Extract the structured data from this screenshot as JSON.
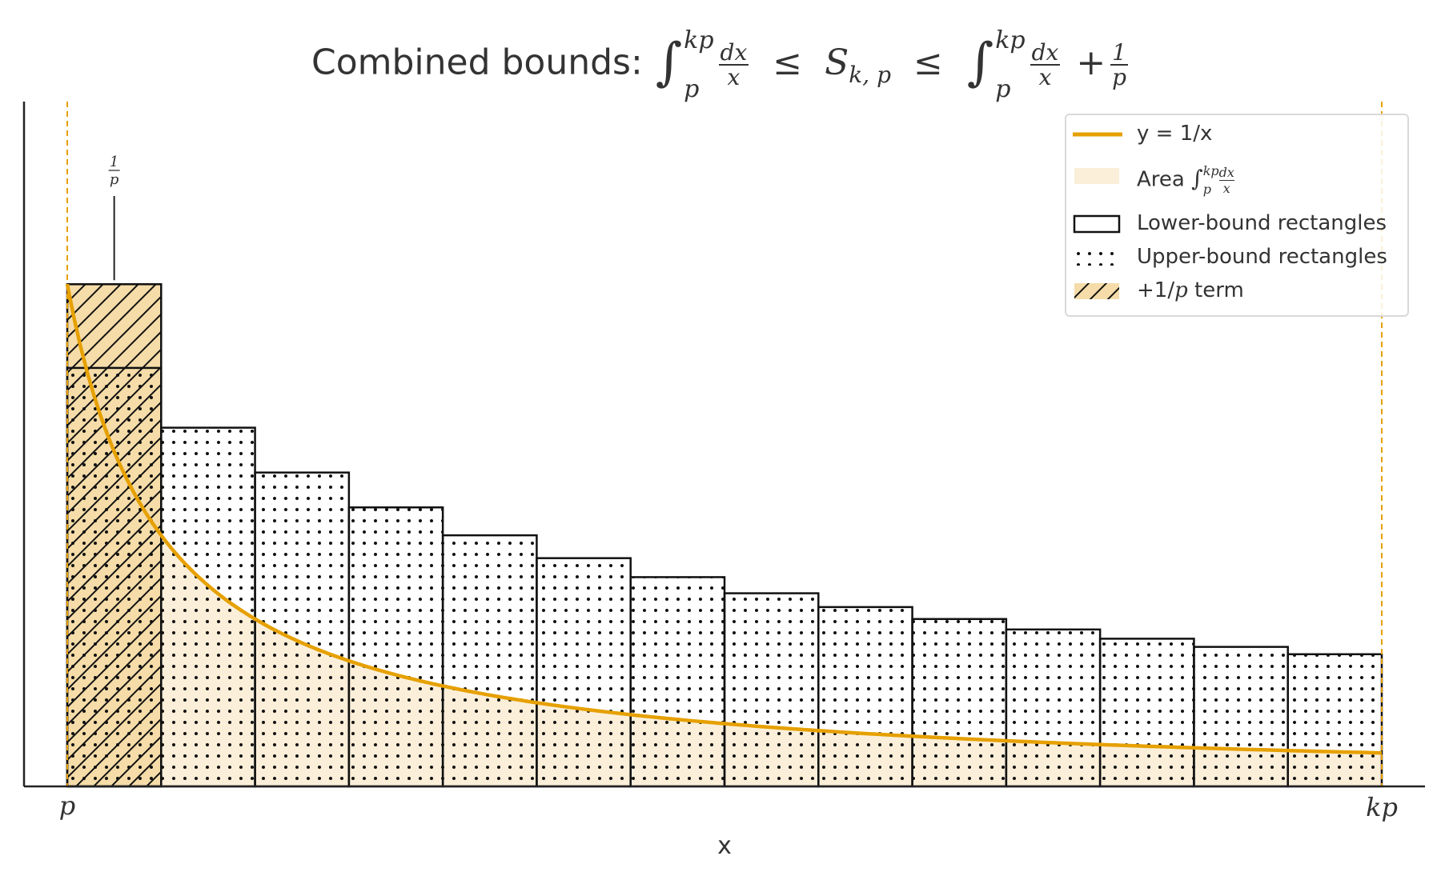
{
  "title": {
    "prefix": "Combined bounds:",
    "int_lower": "p",
    "int_upper": "kp",
    "frac_num": "dx",
    "frac_den": "x",
    "rel1": "≤",
    "sum_symbol": "S",
    "sum_sub": "k, p",
    "rel2": "≤",
    "plus": "+",
    "one": "1",
    "p": "p"
  },
  "chart_data": {
    "type": "bar",
    "xlabel": "x",
    "ylabel": "",
    "x_tick_labels": [
      "p",
      "kp"
    ],
    "p": 1,
    "k": 15,
    "ylim": [
      0,
      1.35
    ],
    "grid": false,
    "series": [
      {
        "name": "y = 1/x",
        "kind": "curve",
        "function": "1/x",
        "x_range": [
          1,
          15
        ]
      },
      {
        "name": "Area ∫ₚᵏᵖ dx/x",
        "kind": "area-under-curve",
        "x_range": [
          1,
          15
        ]
      },
      {
        "name": "Lower-bound rectangles",
        "kind": "bars",
        "x_left": [
          1,
          2,
          3,
          4,
          5,
          6,
          7,
          8,
          9,
          10,
          11,
          12,
          13,
          14
        ],
        "heights": [
          0.8333,
          0.7143,
          0.625,
          0.5556,
          0.5,
          0.4545,
          0.4167,
          0.3846,
          0.3571,
          0.3333,
          0.3125,
          0.2941,
          0.2778,
          0.2632
        ]
      },
      {
        "name": "Upper-bound rectangles",
        "kind": "bars",
        "x_left": [
          1,
          2,
          3,
          4,
          5,
          6,
          7,
          8,
          9,
          10,
          11,
          12,
          13,
          14
        ],
        "heights": [
          0.8333,
          0.7143,
          0.625,
          0.5556,
          0.5,
          0.4545,
          0.4167,
          0.3846,
          0.3571,
          0.3333,
          0.3125,
          0.2941,
          0.2778,
          0.2632
        ]
      },
      {
        "name": "+1/p term",
        "kind": "bar",
        "x_left": 1,
        "height": 1.0
      }
    ],
    "annotations": [
      {
        "text_num": "1",
        "text_den": "p",
        "target": "+1/p term"
      }
    ],
    "legend_position": "top-right"
  },
  "legend": {
    "items": [
      {
        "key": "curve",
        "label": "y = 1/x"
      },
      {
        "key": "area",
        "label": "Area",
        "int_lower": "p",
        "int_upper": "kp",
        "frac_num": "dx",
        "frac_den": "x"
      },
      {
        "key": "lower",
        "label": "Lower-bound rectangles"
      },
      {
        "key": "upper",
        "label": "Upper-bound rectangles"
      },
      {
        "key": "term",
        "label": "+1/p term",
        "label_plus": "+1/",
        "label_p": "p",
        "label_suffix": " term"
      }
    ]
  },
  "colors": {
    "curve": "#e6a000",
    "area_fill": "#fbefd9",
    "term_fill": "#f5dca8",
    "rect_stroke": "#111111",
    "axis": "#222222",
    "text": "#333333"
  }
}
